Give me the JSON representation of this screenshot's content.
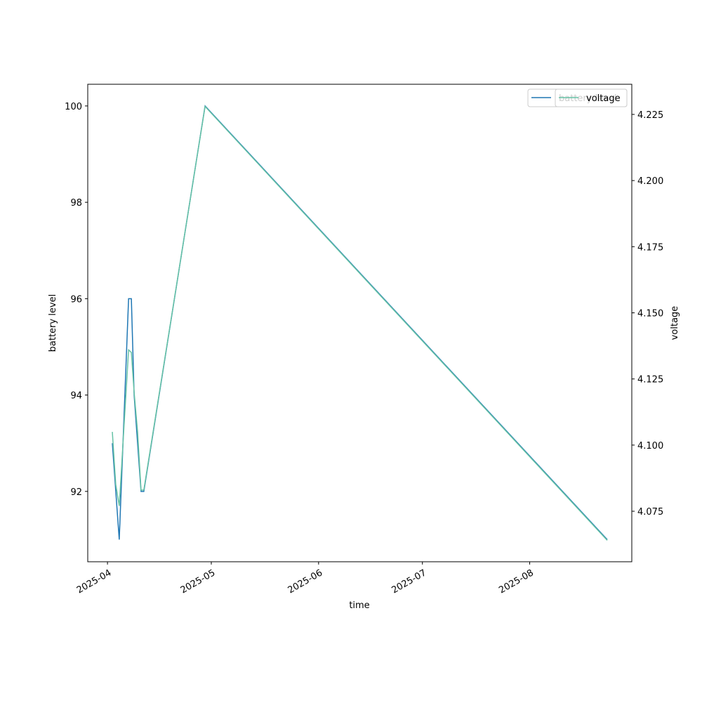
{
  "chart_data": {
    "type": "line",
    "x_label": "time",
    "y_label": "battery level",
    "y2_label": "voltage",
    "x": [
      1.4,
      2.4,
      3.4,
      6.1,
      6.9,
      7.7,
      8.7,
      9.7,
      10.5,
      28.2,
      144.4
    ],
    "series": [
      {
        "name": "battery level",
        "color": "#1f77b4",
        "values": [
          93,
          92,
          91,
          96,
          96,
          94,
          93,
          92,
          92,
          100,
          91
        ]
      },
      {
        "name": "voltage",
        "color": "#66c2a5",
        "axis": "y2",
        "values": [
          4.105,
          4.085,
          4.077,
          4.136,
          4.135,
          4.12,
          4.105,
          4.083,
          4.083,
          4.228,
          4.064
        ]
      }
    ],
    "xlim": [
      -5.7,
      151.5
    ],
    "xticks": [
      {
        "value": 0,
        "label": "2025-04"
      },
      {
        "value": 30,
        "label": "2025-05"
      },
      {
        "value": 61,
        "label": "2025-06"
      },
      {
        "value": 91,
        "label": "2025-07"
      },
      {
        "value": 122,
        "label": "2025-08"
      }
    ],
    "ylim": [
      90.54,
      100.45
    ],
    "yticks": [
      92,
      94,
      96,
      98,
      100
    ],
    "y2lim": [
      4.0559,
      4.2364
    ],
    "y2ticks": [
      {
        "value": 4.075,
        "label": "4.075"
      },
      {
        "value": 4.1,
        "label": "4.100"
      },
      {
        "value": 4.125,
        "label": "4.125"
      },
      {
        "value": 4.15,
        "label": "4.150"
      },
      {
        "value": 4.175,
        "label": "4.175"
      },
      {
        "value": 4.2,
        "label": "4.200"
      },
      {
        "value": 4.225,
        "label": "4.225"
      }
    ],
    "legend": "upper right"
  }
}
